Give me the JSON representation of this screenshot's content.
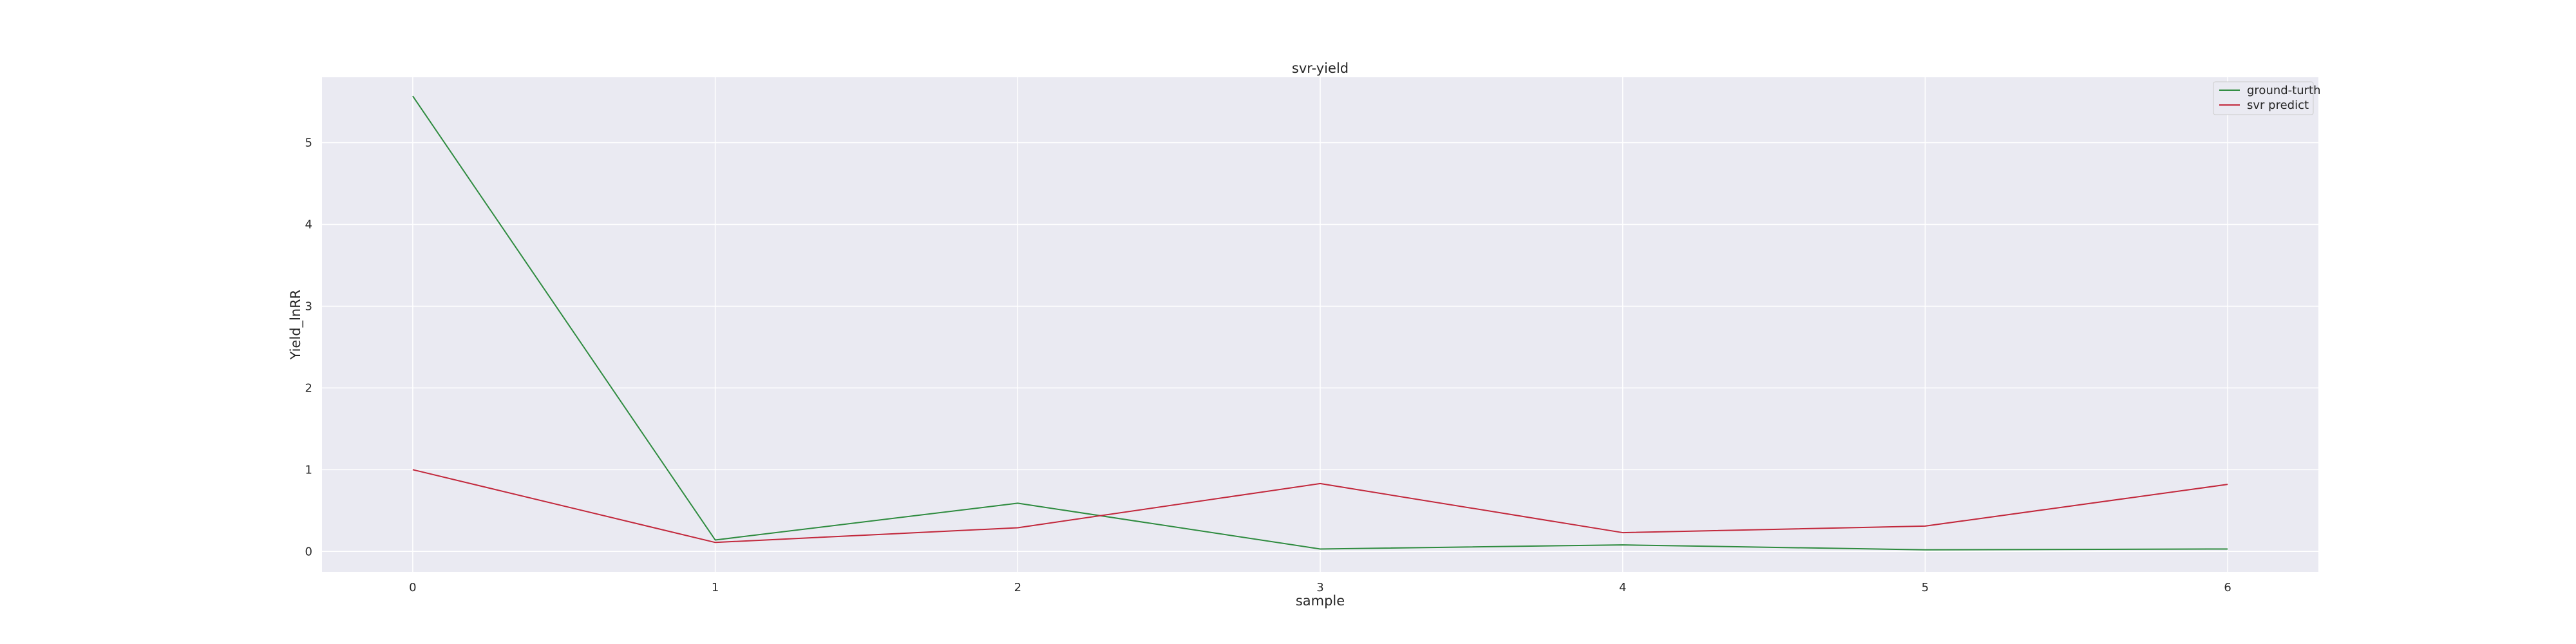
{
  "chart_data": {
    "type": "line",
    "title": "svr-yield",
    "xlabel": "sample",
    "ylabel": "Yield_lnRR",
    "x": [
      0,
      1,
      2,
      3,
      4,
      5,
      6
    ],
    "xlim": [
      -0.3,
      6.3
    ],
    "ylim": [
      -0.25,
      5.8
    ],
    "xticks": [
      0,
      1,
      2,
      3,
      4,
      5,
      6
    ],
    "yticks": [
      0,
      1,
      2,
      3,
      4,
      5
    ],
    "grid": true,
    "legend_position": "top-right",
    "background": "#eaeaf2",
    "series": [
      {
        "name": "ground-turth",
        "color": "#2e8b3f",
        "values": [
          5.57,
          0.14,
          0.59,
          0.03,
          0.08,
          0.02,
          0.03
        ]
      },
      {
        "name": "svr predict",
        "color": "#c2283c",
        "values": [
          1.0,
          0.11,
          0.29,
          0.83,
          0.23,
          0.31,
          0.82
        ]
      }
    ]
  }
}
